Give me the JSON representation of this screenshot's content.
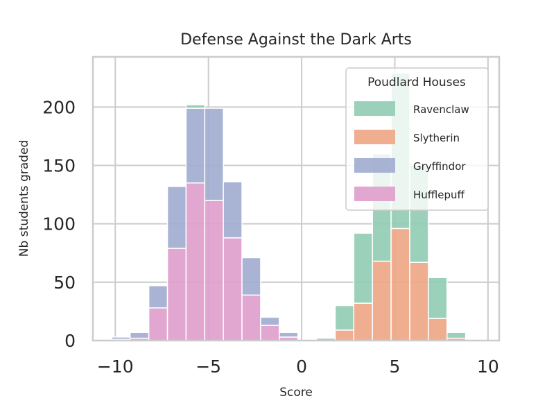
{
  "chart_data": {
    "type": "bar",
    "stacked": true,
    "title": "Defense Against the Dark Arts",
    "xlabel": "Score",
    "ylabel": "Nb students graded",
    "xlim": [
      -11.2,
      10.6
    ],
    "ylim": [
      0,
      243
    ],
    "xticks": [
      -10,
      -5,
      0,
      5,
      10
    ],
    "xtick_labels": [
      "−10",
      "−5",
      "0",
      "5",
      "10"
    ],
    "yticks": [
      0,
      50,
      100,
      150,
      200
    ],
    "grid": true,
    "legend": {
      "title": "Poudlard Houses",
      "position": "top-right"
    },
    "bins": [
      [
        -10.2,
        -9.2
      ],
      [
        -9.2,
        -8.2
      ],
      [
        -8.2,
        -7.2
      ],
      [
        -7.2,
        -6.2
      ],
      [
        -6.2,
        -5.2
      ],
      [
        -5.2,
        -4.2
      ],
      [
        -4.2,
        -3.2
      ],
      [
        -3.2,
        -2.2
      ],
      [
        -2.2,
        -1.2
      ],
      [
        -1.2,
        -0.2
      ],
      [
        0.8,
        1.8
      ],
      [
        1.8,
        2.8
      ],
      [
        2.8,
        3.8
      ],
      [
        3.8,
        4.8
      ],
      [
        4.8,
        5.8
      ],
      [
        5.8,
        6.8
      ],
      [
        6.8,
        7.8
      ],
      [
        7.8,
        8.8
      ]
    ],
    "series": [
      {
        "name": "Hufflepuff",
        "color": "#e0a0cc",
        "values": [
          1,
          2,
          28,
          79,
          135,
          120,
          88,
          39,
          13,
          3,
          0,
          0,
          0,
          0,
          0,
          0,
          0,
          0
        ]
      },
      {
        "name": "Gryffindor",
        "color": "#a2acd0",
        "values": [
          2,
          5,
          19,
          53,
          64,
          79,
          48,
          32,
          7,
          4,
          0,
          0,
          0,
          0,
          0,
          0,
          0,
          0
        ]
      },
      {
        "name": "Slytherin",
        "color": "#eea787",
        "values": [
          0,
          0,
          0,
          0,
          0,
          0,
          0,
          0,
          0,
          0,
          0,
          9,
          32,
          68,
          96,
          67,
          19,
          2
        ]
      },
      {
        "name": "Ravenclaw",
        "color": "#92cdb5",
        "values": [
          0,
          0,
          0,
          0,
          3,
          0,
          0,
          0,
          0,
          0,
          2,
          21,
          60,
          92,
          133,
          83,
          35,
          5
        ]
      }
    ],
    "legend_order": [
      "Ravenclaw",
      "Slytherin",
      "Gryffindor",
      "Hufflepuff"
    ]
  }
}
